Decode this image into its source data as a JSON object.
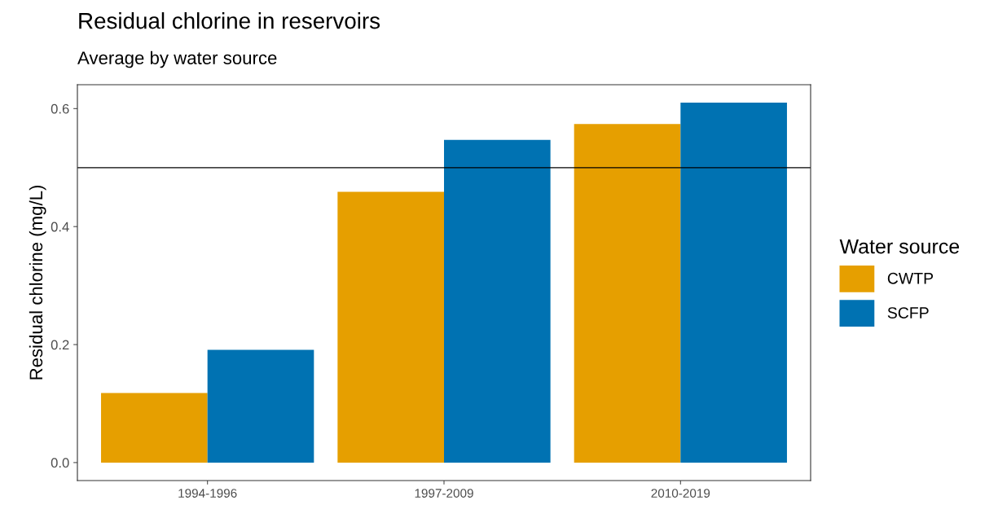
{
  "chart_data": {
    "type": "bar",
    "title": "Residual chlorine in reservoirs",
    "subtitle": "Average by water source",
    "ylabel": "Residual chlorine (mg/L)",
    "legend_title": "Water source",
    "categories": [
      "1994-1996",
      "1997-2009",
      "2010-2019"
    ],
    "series": [
      {
        "name": "CWTP",
        "color": "#e69f00",
        "values": [
          0.118,
          0.459,
          0.574
        ]
      },
      {
        "name": "SCFP",
        "color": "#0072b2",
        "values": [
          0.191,
          0.547,
          0.61
        ]
      }
    ],
    "ylim": [
      -0.0305,
      0.6405
    ],
    "yticks": [
      {
        "value": 0,
        "label": "0.0"
      },
      0.2,
      0.4,
      0.6
    ],
    "ref_lines": [
      {
        "axis": "y",
        "value": 0.5,
        "color": "#000000",
        "line_style": "solid"
      }
    ],
    "grid": false,
    "legend": "right"
  }
}
